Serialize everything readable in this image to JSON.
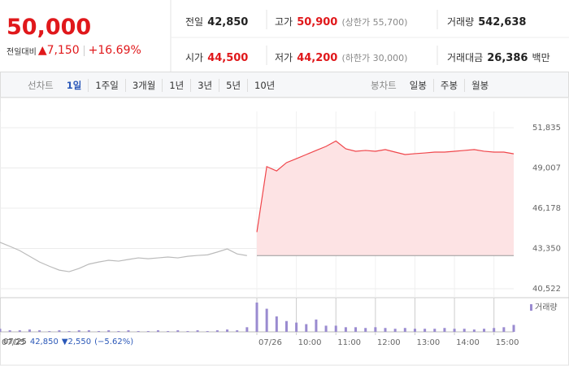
{
  "header": {
    "price": "50,000",
    "change_label": "전일대비",
    "change": "▲7,150",
    "change_pct": "+16.69%"
  },
  "info": [
    {
      "label": "전일",
      "value": "42,850"
    },
    {
      "label": "고가",
      "value": "50,900",
      "note": "(상한가 55,700)"
    },
    {
      "label": "거래량",
      "value": "542,638"
    },
    {
      "label": "시가",
      "value": "44,500"
    },
    {
      "label": "저가",
      "value": "44,200",
      "note": "(하한가 30,000)"
    },
    {
      "label": "거래대금",
      "value": "26,386",
      "unit": "백만"
    }
  ],
  "tabs": {
    "line_label": "선차트",
    "line": [
      "1일",
      "1주일",
      "3개월",
      "1년",
      "3년",
      "5년",
      "10년"
    ],
    "candle_label": "봉차트",
    "candle": [
      "일봉",
      "주봉",
      "월봉"
    ]
  },
  "footer": {
    "date": "07/25",
    "price": "42,850",
    "change": "▼2,550",
    "pct": "(−5.62%)"
  },
  "chart_data": {
    "type": "line",
    "categories": [
      "07/25",
      null,
      null,
      null,
      null,
      null,
      null,
      null,
      null,
      null,
      null,
      null,
      null,
      null,
      null,
      null,
      null,
      null,
      null,
      null,
      null,
      null,
      null,
      null,
      null,
      null,
      "07/26",
      null,
      null,
      null,
      "10:00",
      null,
      null,
      null,
      "11:00",
      null,
      null,
      null,
      "12:00",
      null,
      null,
      null,
      "13:00",
      null,
      null,
      null,
      "14:00",
      null,
      null,
      null,
      "15:00",
      null,
      null
    ],
    "series": [
      {
        "color": "#bbbbbb",
        "values": [
          43780,
          43500,
          43200,
          42800,
          42400,
          42100,
          41830,
          41720,
          41950,
          42250,
          42400,
          42520,
          42460,
          42580,
          42690,
          42630,
          42690,
          42750,
          42690,
          42800,
          42860,
          42900,
          43100,
          43320,
          42970,
          42850,
          null,
          null,
          null,
          null,
          null,
          null,
          null,
          null,
          null,
          null,
          null,
          null,
          null,
          null,
          null,
          null,
          null,
          null,
          null,
          null,
          null,
          null,
          null,
          null,
          null,
          null,
          null
        ]
      },
      {
        "color": "#f0464b",
        "fill": "#fde3e4",
        "values": [
          null,
          null,
          null,
          null,
          null,
          null,
          null,
          null,
          null,
          null,
          null,
          null,
          null,
          null,
          null,
          null,
          null,
          null,
          null,
          null,
          null,
          null,
          null,
          null,
          null,
          null,
          44500,
          49100,
          48800,
          49380,
          49660,
          49950,
          50240,
          50520,
          50900,
          50350,
          50180,
          50240,
          50180,
          50300,
          50120,
          49950,
          50010,
          50060,
          50120,
          50120,
          50180,
          50240,
          50300,
          50180,
          50120,
          50120,
          50000
        ]
      }
    ],
    "baseline": 42850,
    "ylim": [
      40522,
      51835
    ],
    "yticks": [
      {
        "value": 51835,
        "label": "51,835"
      },
      {
        "value": 49007,
        "label": "49,007"
      },
      {
        "value": 46178,
        "label": "46,178"
      },
      {
        "value": 43350,
        "label": "43,350"
      },
      {
        "value": 40522,
        "label": "40,522"
      }
    ],
    "grid": true,
    "volume": {
      "name": "거래량",
      "color": "#9a8bd0",
      "values": [
        4,
        2,
        2,
        3,
        2,
        1,
        2,
        1,
        2,
        2,
        1,
        2,
        1,
        2,
        1,
        1,
        2,
        1,
        2,
        1,
        2,
        1,
        2,
        3,
        2,
        6,
        38,
        30,
        20,
        14,
        12,
        10,
        16,
        8,
        8,
        6,
        6,
        5,
        6,
        5,
        4,
        5,
        4,
        4,
        4,
        5,
        4,
        4,
        3,
        4,
        5,
        6,
        9
      ]
    }
  }
}
